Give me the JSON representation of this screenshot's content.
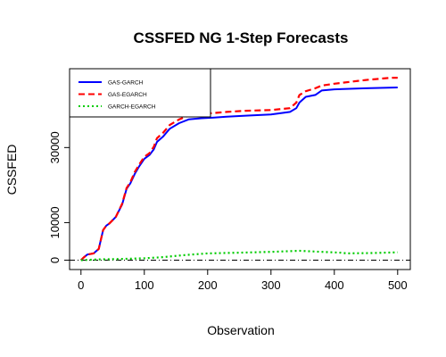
{
  "chart_data": {
    "type": "line",
    "title": "CSSFED NG 1-Step Forecasts",
    "xlabel": "Observation",
    "ylabel": "CSSFED",
    "xlim": [
      -18,
      520
    ],
    "ylim": [
      -2500,
      51000
    ],
    "x_ticks": [
      0,
      100,
      200,
      300,
      400,
      500
    ],
    "y_ticks": [
      0,
      10000,
      30000
    ],
    "y_tick_labels": [
      "0",
      "10000",
      "30000"
    ],
    "reference_line": {
      "y": 0,
      "style": "dot-dash"
    },
    "legend": {
      "position": "top-left",
      "entries": [
        {
          "label": "GAS-GARCH",
          "color": "#0000ff",
          "dash": "solid"
        },
        {
          "label": "GAS-EGARCH",
          "color": "#ff0000",
          "dash": "dashed"
        },
        {
          "label": "GARCH-EGARCH",
          "color": "#00cc00",
          "dash": "dotted"
        }
      ]
    },
    "series": [
      {
        "name": "GAS-GARCH",
        "color": "#0000ff",
        "dash": "solid",
        "x": [
          0,
          5,
          10,
          20,
          28,
          35,
          40,
          45,
          55,
          65,
          72,
          78,
          85,
          92,
          100,
          108,
          115,
          120,
          130,
          140,
          155,
          170,
          190,
          210,
          230,
          260,
          300,
          330,
          340,
          345,
          355,
          370,
          380,
          400,
          450,
          500
        ],
        "y": [
          0,
          800,
          1500,
          1800,
          3000,
          8000,
          9200,
          9800,
          11500,
          14800,
          19000,
          20500,
          23000,
          25000,
          27000,
          28000,
          29500,
          31500,
          33000,
          35000,
          36500,
          37500,
          37800,
          38000,
          38200,
          38500,
          38800,
          39500,
          40500,
          42000,
          43500,
          44000,
          45200,
          45500,
          45800,
          46000
        ]
      },
      {
        "name": "GAS-EGARCH",
        "color": "#ff0000",
        "dash": "dashed",
        "x": [
          0,
          5,
          10,
          20,
          28,
          35,
          40,
          45,
          55,
          65,
          72,
          78,
          85,
          92,
          100,
          108,
          115,
          120,
          130,
          140,
          155,
          170,
          190,
          210,
          230,
          260,
          300,
          330,
          340,
          345,
          355,
          370,
          380,
          400,
          450,
          490,
          500
        ],
        "y": [
          0,
          800,
          1500,
          1800,
          3000,
          8000,
          9200,
          9800,
          11500,
          15000,
          19200,
          20800,
          23500,
          25500,
          27500,
          28500,
          30200,
          32500,
          34000,
          36000,
          37500,
          38500,
          38900,
          39200,
          39500,
          39800,
          40000,
          40500,
          42000,
          44000,
          45000,
          45800,
          46500,
          47000,
          48000,
          48600,
          48600
        ]
      },
      {
        "name": "GARCH-EGARCH",
        "color": "#00cc00",
        "dash": "dotted",
        "x": [
          0,
          30,
          60,
          100,
          130,
          160,
          200,
          250,
          300,
          345,
          380,
          410,
          420,
          460,
          500
        ],
        "y": [
          0,
          200,
          300,
          500,
          800,
          1300,
          1800,
          2000,
          2200,
          2500,
          2200,
          2000,
          1800,
          1900,
          2100
        ]
      }
    ]
  }
}
